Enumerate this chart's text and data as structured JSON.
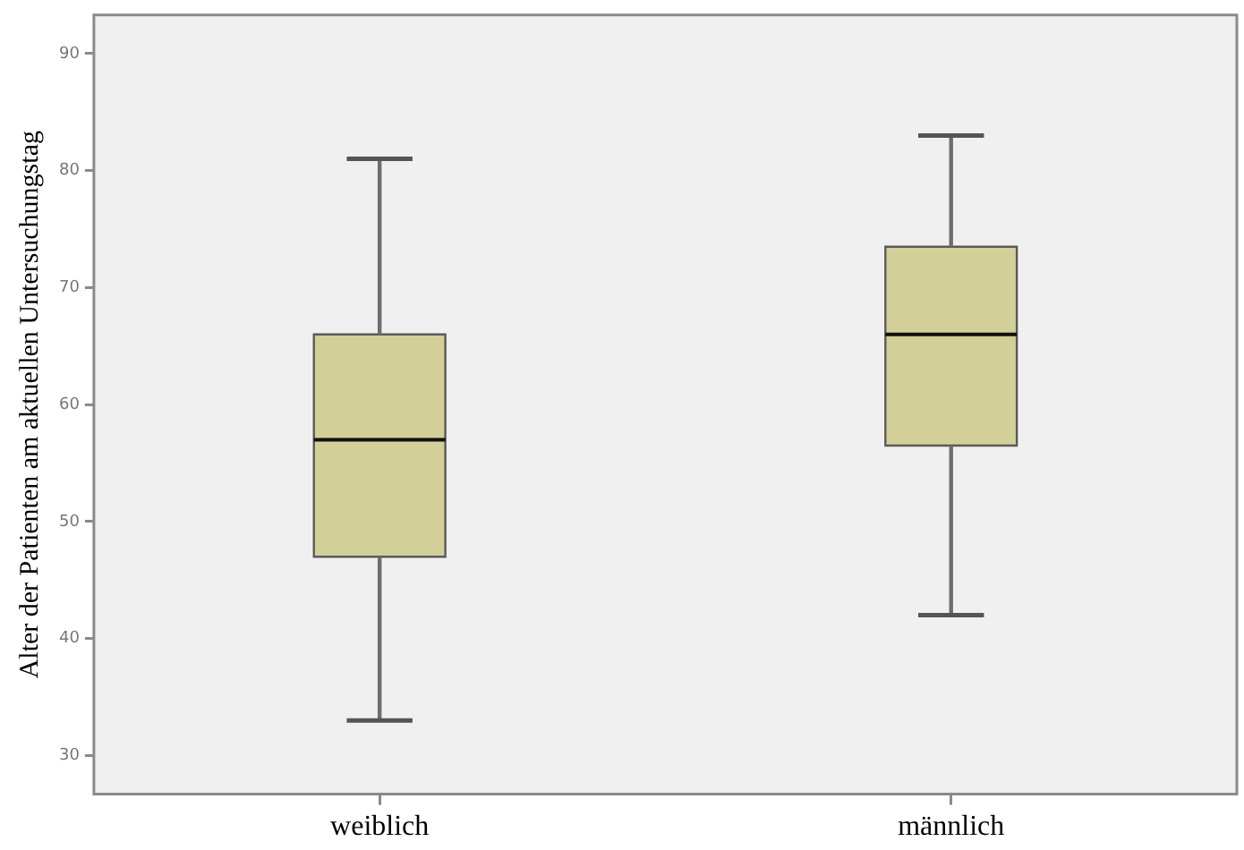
{
  "chart_data": {
    "type": "box",
    "ylabel": "Alter der Patienten am aktuellen Untersuchungstag",
    "categories": [
      "weiblich",
      "männlich"
    ],
    "color": "#d3cf98",
    "boxes": [
      {
        "low": 33,
        "q1": 47,
        "median": 57,
        "q3": 66,
        "high": 81
      },
      {
        "low": 42,
        "q1": 56.5,
        "median": 66,
        "q3": 73.5,
        "high": 83
      }
    ],
    "ylim": [
      26.7,
      93.3
    ],
    "yticks": [
      30,
      40,
      50,
      60,
      70,
      80,
      90
    ],
    "grid": false,
    "legend": false
  }
}
